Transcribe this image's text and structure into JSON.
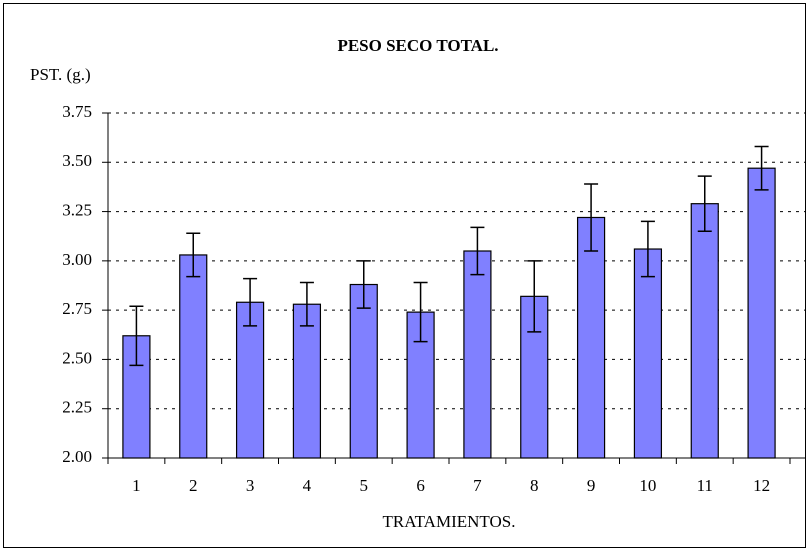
{
  "chart_data": {
    "type": "bar",
    "title": "PESO SECO TOTAL.",
    "y_label": "PST. (g.)",
    "x_label": "TRATAMIENTOS.",
    "categories": [
      "1",
      "2",
      "3",
      "4",
      "5",
      "6",
      "7",
      "8",
      "9",
      "10",
      "11",
      "12"
    ],
    "values": [
      2.62,
      3.03,
      2.79,
      2.78,
      2.88,
      2.74,
      3.05,
      2.82,
      3.22,
      3.06,
      3.29,
      3.47
    ],
    "errors": [
      0.15,
      0.11,
      0.12,
      0.11,
      0.12,
      0.15,
      0.12,
      0.18,
      0.17,
      0.14,
      0.14,
      0.11
    ],
    "color": "#8080ff",
    "ylim": [
      2.0,
      3.75
    ],
    "yticks": [
      {
        "value": 2.0,
        "label": "2.00"
      },
      {
        "value": 2.25,
        "label": "2.25"
      },
      {
        "value": 2.5,
        "label": "2.50"
      },
      {
        "value": 2.75,
        "label": "2.75"
      },
      {
        "value": 3.0,
        "label": "3.00"
      },
      {
        "value": 3.25,
        "label": "3.25"
      },
      {
        "value": 3.5,
        "label": "3.50"
      },
      {
        "value": 3.75,
        "label": "3.75"
      }
    ],
    "grid": true
  }
}
